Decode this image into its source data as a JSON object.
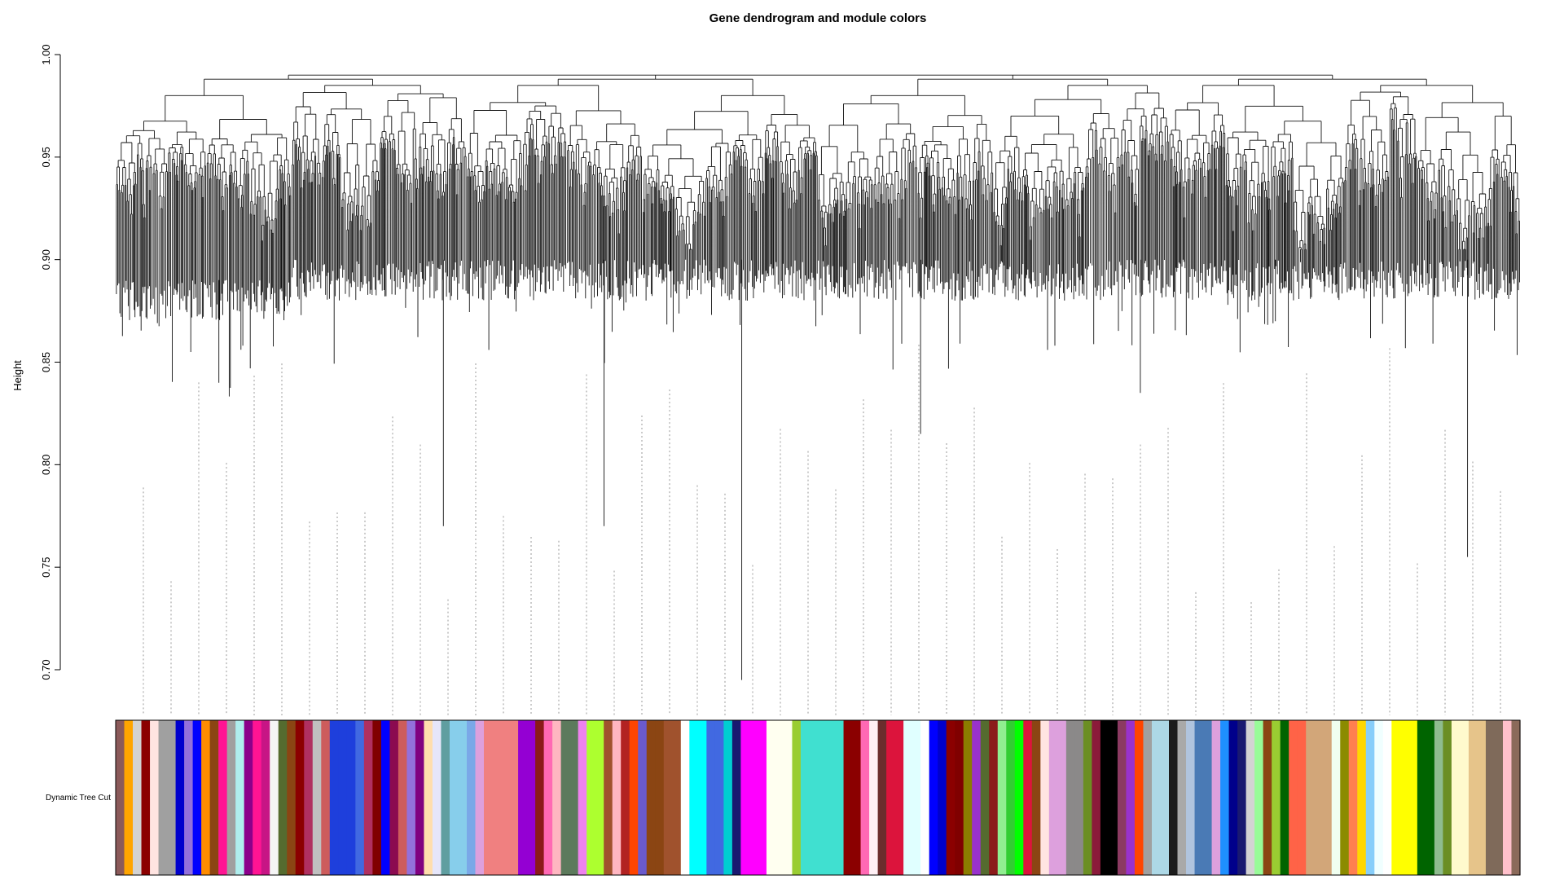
{
  "chart_data": {
    "type": "dendrogram",
    "title": "Gene dendrogram and module colors",
    "ylabel": "Height",
    "xlabel": "",
    "ylim": [
      0.7,
      1.0
    ],
    "yticks": [
      1.0,
      0.95,
      0.9,
      0.85,
      0.8,
      0.75,
      0.7
    ],
    "ytick_labels": [
      "1.00",
      "0.95",
      "0.90",
      "0.85",
      "0.80",
      "0.75",
      "0.70"
    ],
    "grid": false,
    "color_row_label": "Dynamic Tree Cut",
    "root_height": 0.99,
    "major_clusters": [
      {
        "merge_height": 0.98,
        "low_height": 0.89,
        "deep_branch_height": 0.84
      },
      {
        "merge_height": 0.985,
        "low_height": 0.9,
        "deep_branch_height": 0.77
      },
      {
        "merge_height": 0.985,
        "low_height": 0.9,
        "deep_branch_height": 0.77
      },
      {
        "merge_height": 0.98,
        "low_height": 0.9,
        "deep_branch_height": 0.695
      },
      {
        "merge_height": 0.98,
        "low_height": 0.9,
        "deep_branch_height": 0.815
      },
      {
        "merge_height": 0.985,
        "low_height": 0.9,
        "deep_branch_height": 0.835
      },
      {
        "merge_height": 0.985,
        "low_height": 0.9,
        "deep_branch_height": 0.87
      },
      {
        "merge_height": 0.985,
        "low_height": 0.9,
        "deep_branch_height": 0.755
      }
    ],
    "module_colors": [
      "#8B5A5A",
      "#FFA500",
      "#D3D3D3",
      "#8B0000",
      "#FFE4E1",
      "#A0A0A0",
      "#A0A0A0",
      "#0000CD",
      "#9370DB",
      "#0000FF",
      "#FF8C00",
      "#8B4513",
      "#FF1493",
      "#A0A0A0",
      "#AFEEEE",
      "#8B008B",
      "#FF1493",
      "#C71585",
      "#F5F5F5",
      "#556B2F",
      "#8B4513",
      "#8B0000",
      "#B03060",
      "#C0C0C0",
      "#CD5C5C",
      "#1E3FDC",
      "#1E3FDC",
      "#1E3FDC",
      "#4169E1",
      "#B03060",
      "#800000",
      "#0000FF",
      "#8B0A50",
      "#CD5C5C",
      "#9370DB",
      "#800080",
      "#FFDEAD",
      "#E6E6FA",
      "#5F9EA0",
      "#87CEEB",
      "#87CEEB",
      "#7AA8E8",
      "#DDA0DD",
      "#F08080",
      "#F08080",
      "#F08080",
      "#F08080",
      "#9400D3",
      "#9400D3",
      "#8B1A1A",
      "#FF69B4",
      "#FFB6C1",
      "#5C7A5C",
      "#5C7A5C",
      "#EE82EE",
      "#ADFF2F",
      "#ADFF2F",
      "#A0522D",
      "#FFB6C1",
      "#B22222",
      "#FF4500",
      "#6A5ACD",
      "#8B4513",
      "#8B4513",
      "#A0522D",
      "#A0522D",
      "#FFFFFF",
      "#00FFFF",
      "#00FFFF",
      "#4169E1",
      "#4169E1",
      "#00CED1",
      "#191970",
      "#FF00FF",
      "#FF00FF",
      "#FF00FF",
      "#FFFFF0",
      "#FFFFF0",
      "#FFFFF0",
      "#9ACD32",
      "#40E0D0",
      "#40E0D0",
      "#40E0D0",
      "#40E0D0",
      "#40E0D0",
      "#8B0000",
      "#8B0000",
      "#FF69B4",
      "#FFF0F5",
      "#6B2D2D",
      "#DC143C",
      "#DC143C",
      "#E0FFFF",
      "#E0FFFF",
      "#FFFFFF",
      "#0000FF",
      "#0000CD",
      "#8B0000",
      "#800000",
      "#8B7D00",
      "#9932CC",
      "#556B2F",
      "#8B1A1A",
      "#90EE90",
      "#32CD32",
      "#00FF00",
      "#DC143C",
      "#8B4513",
      "#FFE4E1",
      "#DDA0DD",
      "#DDA0DD",
      "#8B8989",
      "#8B8989",
      "#6B8E23",
      "#8B1A3A",
      "#000000",
      "#000000",
      "#8B3A62",
      "#9932CC",
      "#FF4500",
      "#A0A0A0",
      "#ADD8E6",
      "#ADD8E6",
      "#1C1C1C",
      "#A9A9A9",
      "#B0C4DE",
      "#4A7AB5",
      "#4A7AB5",
      "#DDA0DD",
      "#1E90FF",
      "#00008B",
      "#191970",
      "#D3D3D3",
      "#98FB98",
      "#8B4513",
      "#9ACD32",
      "#006400",
      "#FF6347",
      "#FF6347",
      "#D2A679",
      "#D2A679",
      "#D2A679",
      "#F0FFF0",
      "#8B8B00",
      "#FF7F50",
      "#FFD700",
      "#87CEFA",
      "#F0FFFF",
      "#FFFFFF",
      "#FFFF00",
      "#FFFF00",
      "#FFFF00",
      "#006400",
      "#006400",
      "#8FBC8F",
      "#6B8E23",
      "#FFFACD",
      "#FFFACD",
      "#E6C48A",
      "#E6C48A",
      "#7F6A5A",
      "#7F6A5A",
      "#FFC0CB",
      "#8B6A5A"
    ]
  }
}
